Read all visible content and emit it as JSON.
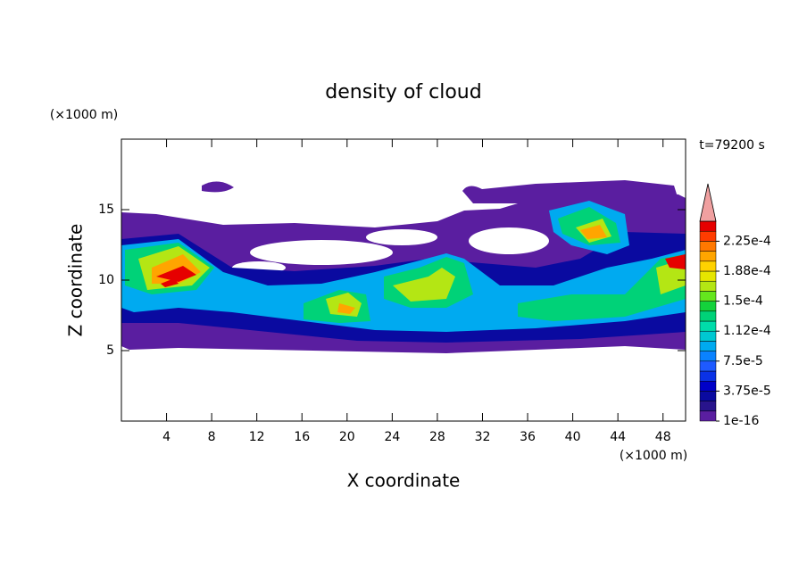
{
  "chart_data": {
    "type": "contour",
    "title": "density of cloud",
    "x_label": "X coordinate",
    "y_label": "Z coordinate",
    "x_unit": "(×1000 m)",
    "y_unit": "(×1000 m)",
    "time_label": "t=79200 s",
    "xlim": [
      0,
      50
    ],
    "ylim": [
      0,
      20
    ],
    "xticks": [
      4,
      8,
      12,
      16,
      20,
      24,
      28,
      32,
      36,
      40,
      44,
      48
    ],
    "yticks": [
      5,
      10,
      15
    ],
    "colorbar": {
      "levels": [
        1e-16,
        1.25e-05,
        2.5e-05,
        3.75e-05,
        5e-05,
        6.25e-05,
        7.5e-05,
        8.75e-05,
        0.0001,
        0.0001125,
        0.000125,
        0.0001375,
        0.00015,
        0.0001625,
        0.000175,
        0.0001875,
        0.0002,
        0.0002125,
        0.000225,
        0.0002375
      ],
      "colors": [
        "#5a1ea0",
        "#28148c",
        "#0a0aa0",
        "#0000c8",
        "#0a32e6",
        "#1e5aff",
        "#0a82ff",
        "#00aaf0",
        "#00c8d2",
        "#00dcaa",
        "#00d278",
        "#14d23c",
        "#64e61e",
        "#b4e614",
        "#e6e600",
        "#ffd200",
        "#ffa500",
        "#ff7800",
        "#ff3c00",
        "#e60000"
      ],
      "extend_color": "#f0a0a0",
      "ticks": [
        {
          "value": 1e-16,
          "label": "1e-16"
        },
        {
          "value": 3.75e-05,
          "label": "3.75e-5"
        },
        {
          "value": 7.5e-05,
          "label": "7.5e-5"
        },
        {
          "value": 0.0001125,
          "label": "1.12e-4"
        },
        {
          "value": 0.00015,
          "label": "1.5e-4"
        },
        {
          "value": 0.0001875,
          "label": "1.88e-4"
        },
        {
          "value": 0.000225,
          "label": "2.25e-4"
        }
      ]
    }
  }
}
